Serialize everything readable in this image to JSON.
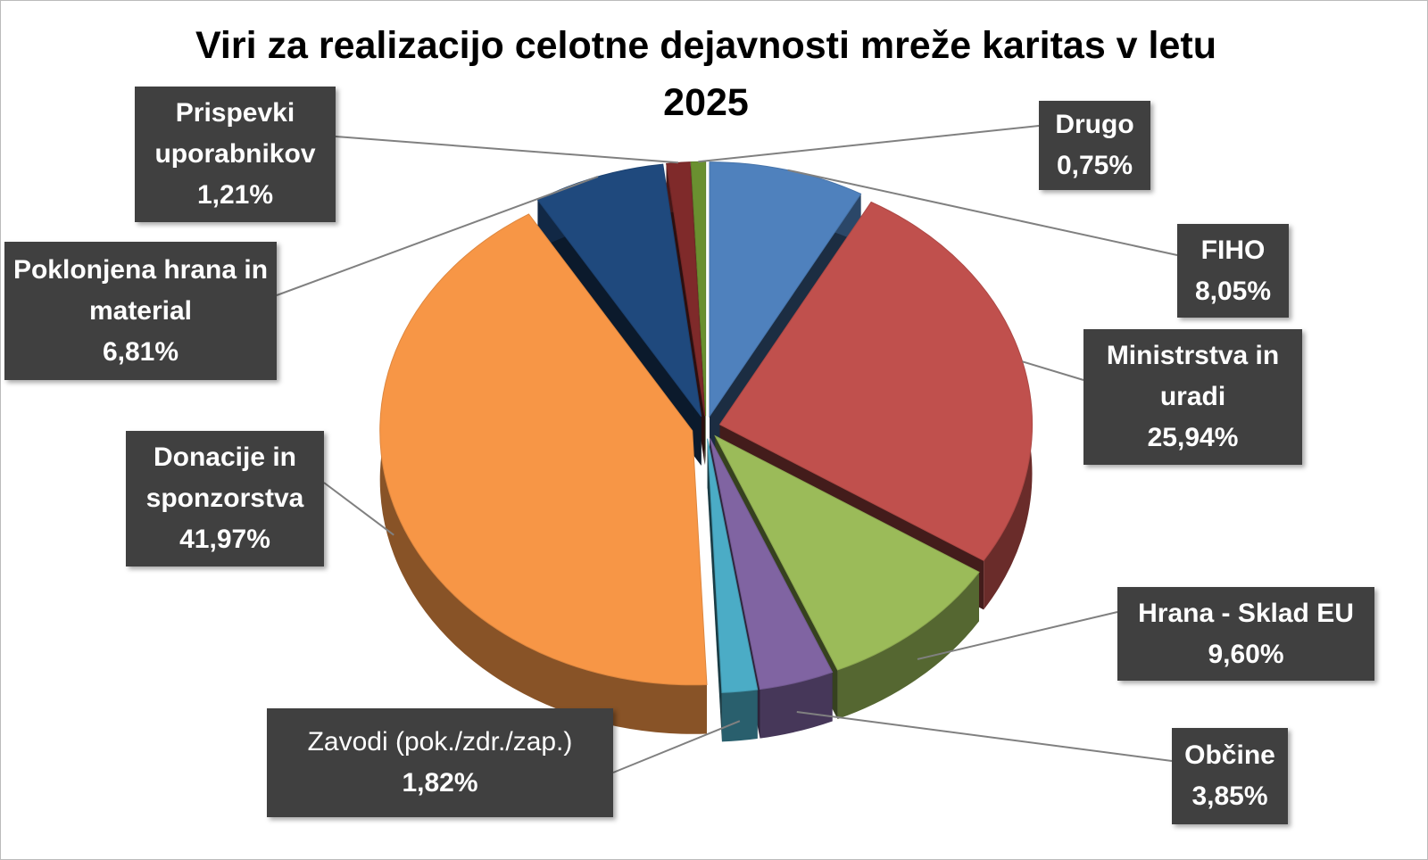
{
  "chart_data": {
    "type": "pie",
    "title": "Viri za realizacijo celotne dejavnosti mreže karitas v letu 2025",
    "categories": [
      "FIHO",
      "Ministrstva in uradi",
      "Hrana - Sklad EU",
      "Občine",
      "Zavodi (pok./zdr./zap.)",
      "Donacije in sponzorstva",
      "Poklonjena hrana in material",
      "Prispevki uporabnikov",
      "Drugo"
    ],
    "values": [
      8.05,
      25.94,
      9.6,
      3.85,
      1.82,
      41.97,
      6.81,
      1.21,
      0.75
    ],
    "value_labels": [
      "8,05%",
      "25,94%",
      "9,60%",
      "3,85%",
      "1,82%",
      "41,97%",
      "6,81%",
      "1,21%",
      "0,75%"
    ],
    "colors": [
      "#4f81bd",
      "#c0504d",
      "#9bbb59",
      "#8064a2",
      "#4bacc6",
      "#f79646",
      "#1f497d",
      "#7f2a2a",
      "#6a9030"
    ]
  }
}
